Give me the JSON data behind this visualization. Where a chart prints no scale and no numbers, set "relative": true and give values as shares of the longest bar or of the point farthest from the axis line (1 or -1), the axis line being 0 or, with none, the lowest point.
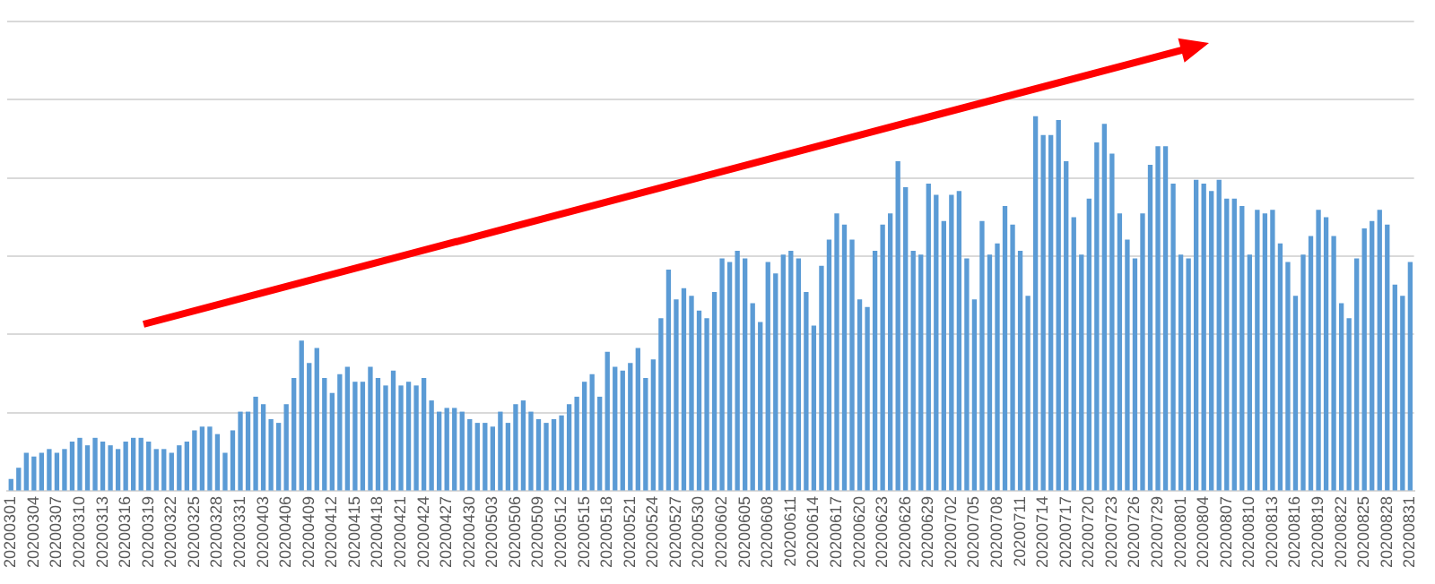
{
  "chart_data": {
    "type": "bar",
    "relative": true,
    "grid": "y",
    "color": "#5b9bd5",
    "categories": [
      "20200301",
      null,
      null,
      "20200304",
      null,
      null,
      "20200307",
      null,
      null,
      "20200310",
      null,
      null,
      "20200313",
      null,
      null,
      "20200316",
      null,
      null,
      "20200319",
      null,
      null,
      "20200322",
      null,
      null,
      "20200325",
      null,
      null,
      "20200328",
      null,
      null,
      "20200331",
      null,
      null,
      "20200403",
      null,
      null,
      "20200406",
      null,
      null,
      "20200409",
      null,
      null,
      "20200412",
      null,
      null,
      "20200415",
      null,
      null,
      "20200418",
      null,
      null,
      "20200421",
      null,
      null,
      "20200424",
      null,
      null,
      "20200427",
      null,
      null,
      "20200430",
      null,
      null,
      "20200503",
      null,
      null,
      "20200506",
      null,
      null,
      "20200509",
      null,
      null,
      "20200512",
      null,
      null,
      "20200515",
      null,
      null,
      "20200518",
      null,
      null,
      "20200521",
      null,
      null,
      "20200524",
      null,
      null,
      "20200527",
      null,
      null,
      "20200530",
      null,
      null,
      "20200602",
      null,
      null,
      "20200605",
      null,
      null,
      "20200608",
      null,
      null,
      "20200611",
      null,
      null,
      "20200614",
      null,
      null,
      "20200617",
      null,
      null,
      "20200620",
      null,
      null,
      "20200623",
      null,
      null,
      "20200626",
      null,
      null,
      "20200629",
      null,
      null,
      "20200702",
      null,
      null,
      "20200705",
      null,
      null,
      "20200708",
      null,
      null,
      "20200711",
      null,
      null,
      "20200714",
      null,
      null,
      "20200717",
      null,
      null,
      "20200720",
      null,
      null,
      "20200723",
      null,
      null,
      "20200726",
      null,
      null,
      "20200729",
      null,
      null,
      "20200801",
      null,
      null,
      "20200804",
      null,
      null,
      "20200807",
      null,
      null,
      "20200810",
      null,
      null,
      "20200813",
      null,
      null,
      "20200816",
      null,
      null,
      "20200819",
      null,
      null,
      "20200822",
      null,
      null,
      "20200825",
      null,
      null,
      "20200828",
      null,
      null,
      "20200831"
    ],
    "values": [
      0.03,
      0.06,
      0.1,
      0.09,
      0.1,
      0.11,
      0.1,
      0.11,
      0.13,
      0.14,
      0.12,
      0.14,
      0.13,
      0.12,
      0.11,
      0.13,
      0.14,
      0.14,
      0.13,
      0.11,
      0.11,
      0.1,
      0.12,
      0.13,
      0.16,
      0.17,
      0.17,
      0.15,
      0.1,
      0.16,
      0.21,
      0.21,
      0.25,
      0.23,
      0.19,
      0.18,
      0.23,
      0.3,
      0.4,
      0.34,
      0.38,
      0.3,
      0.26,
      0.31,
      0.33,
      0.29,
      0.29,
      0.33,
      0.3,
      0.28,
      0.32,
      0.28,
      0.29,
      0.28,
      0.3,
      0.24,
      0.21,
      0.22,
      0.22,
      0.21,
      0.19,
      0.18,
      0.18,
      0.17,
      0.21,
      0.18,
      0.23,
      0.24,
      0.21,
      0.19,
      0.18,
      0.19,
      0.2,
      0.23,
      0.25,
      0.29,
      0.31,
      0.25,
      0.37,
      0.33,
      0.32,
      0.34,
      0.38,
      0.3,
      0.35,
      0.46,
      0.59,
      0.51,
      0.54,
      0.52,
      0.48,
      0.46,
      0.53,
      0.62,
      0.61,
      0.64,
      0.62,
      0.5,
      0.45,
      0.61,
      0.58,
      0.63,
      0.64,
      0.62,
      0.53,
      0.44,
      0.6,
      0.67,
      0.74,
      0.71,
      0.67,
      0.51,
      0.49,
      0.64,
      0.71,
      0.74,
      0.88,
      0.81,
      0.64,
      0.63,
      0.82,
      0.79,
      0.72,
      0.79,
      0.8,
      0.62,
      0.51,
      0.72,
      0.63,
      0.66,
      0.76,
      0.71,
      0.64,
      0.52,
      1,
      0.95,
      0.95,
      0.99,
      0.88,
      0.73,
      0.63,
      0.78,
      0.93,
      0.98,
      0.9,
      0.74,
      0.67,
      0.62,
      0.74,
      0.87,
      0.92,
      0.92,
      0.82,
      0.63,
      0.62,
      0.83,
      0.82,
      0.8,
      0.83,
      0.78,
      0.78,
      0.76,
      0.63,
      0.75,
      0.74,
      0.75,
      0.66,
      0.61,
      0.52,
      0.63,
      0.68,
      0.75,
      0.73,
      0.68,
      0.5,
      0.46,
      0.62,
      0.7,
      0.72,
      0.75,
      0.71,
      0.55,
      0.52,
      0.61
    ]
  }
}
